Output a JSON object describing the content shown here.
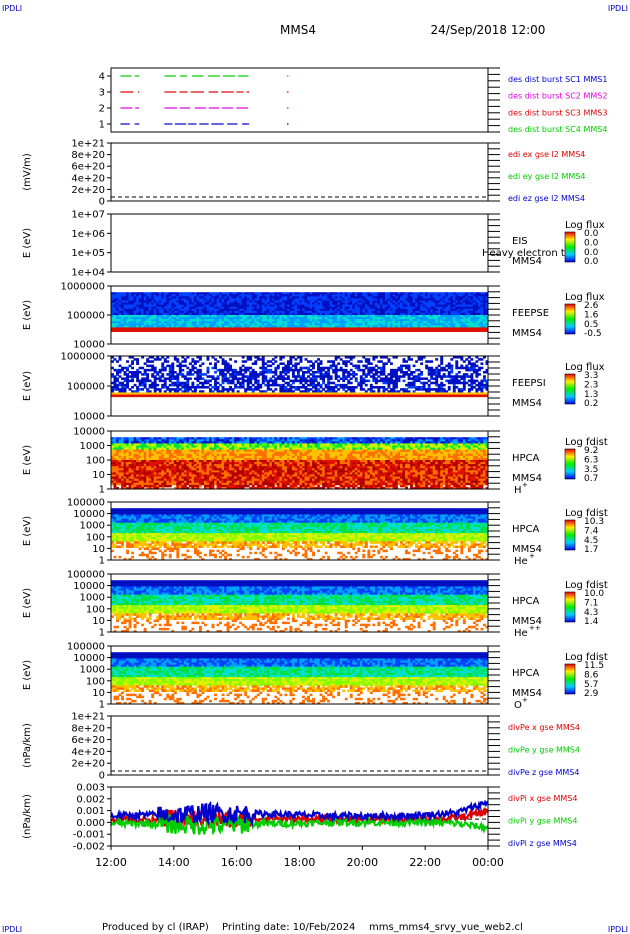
{
  "header": {
    "corner_tl": "IPDLI",
    "corner_tr": "IPDLI",
    "corner_bl": "IPDLI",
    "corner_br": "IPDLI",
    "spacecraft": "MMS4",
    "datetime": "24/Sep/2018 12:00"
  },
  "footer": {
    "produced_by": "Produced by cl (IRAP)",
    "printing_date": "Printing date: 10/Feb/2024",
    "filename": "mms_mms4_srvy_vue_web2.cl"
  },
  "colors": {
    "red": "#dd0000",
    "green": "#00cc00",
    "blue": "#0000cc",
    "magenta": "#dd00dd",
    "axis": "#000000"
  },
  "x_axis": {
    "ticks": [
      "12:00",
      "14:00",
      "16:00",
      "18:00",
      "20:00",
      "22:00",
      "00:00"
    ]
  },
  "chart_data": [
    {
      "type": "line",
      "id": "burst",
      "ylabel": "",
      "ylim": [
        0.5,
        4.5
      ],
      "yticks": [
        "4",
        "3",
        "2",
        "1"
      ],
      "legend": [
        {
          "label": "des dist burst SC1 MMS1",
          "color": "#0000cc"
        },
        {
          "label": "des dist burst SC2 MMS2",
          "color": "#dd00dd"
        },
        {
          "label": "des dist burst SC3 MMS3",
          "color": "#dd0000"
        },
        {
          "label": "des dist burst SC4 MMS4",
          "color": "#00cc00"
        }
      ],
      "series": [
        {
          "level": 4,
          "color": "#00cc00",
          "intervals": [
            [
              12.3,
              12.9
            ],
            [
              13.7,
              16.4
            ],
            [
              17.6,
              17.65
            ]
          ]
        },
        {
          "level": 3,
          "color": "#dd0000",
          "intervals": [
            [
              12.3,
              12.9
            ],
            [
              13.7,
              16.4
            ],
            [
              17.6,
              17.65
            ]
          ]
        },
        {
          "level": 2,
          "color": "#dd00dd",
          "intervals": [
            [
              12.3,
              12.9
            ],
            [
              13.7,
              16.4
            ],
            [
              17.6,
              17.65
            ]
          ]
        },
        {
          "level": 1,
          "color": "#0000cc",
          "intervals": [
            [
              12.3,
              12.9
            ],
            [
              13.7,
              16.4
            ],
            [
              17.6,
              17.65
            ]
          ]
        }
      ]
    },
    {
      "type": "line",
      "id": "edi",
      "ylabel": "(mV/m)",
      "yticks": [
        "1e+21",
        "8e+20",
        "6e+20",
        "4e+20",
        "2e+20",
        "0"
      ],
      "legend": [
        {
          "label": "edi ex gse l2 MMS4",
          "color": "#dd0000"
        },
        {
          "label": "edi ey gse l2 MMS4",
          "color": "#00cc00"
        },
        {
          "label": "edi ez gse l2 MMS4",
          "color": "#0000cc"
        }
      ]
    },
    {
      "type": "heatmap",
      "id": "eis",
      "ylabel": "E (eV)",
      "yticks": [
        "1e+07",
        "1e+06",
        "1e+05",
        "1e+04"
      ],
      "instrument": "EIS",
      "extra": "Heavy electron to",
      "sc": "MMS4",
      "colorbar_title": "Log flux",
      "colorbar_values": [
        "0.0",
        "0.0",
        "0.0",
        "0.0"
      ]
    },
    {
      "type": "heatmap",
      "id": "feepse",
      "ylabel": "E (eV)",
      "yticks": [
        "1000000",
        "100000",
        "10000"
      ],
      "instrument": "FEEPSE",
      "sc": "MMS4",
      "colorbar_title": "Log flux",
      "colorbar_values": [
        "2.6",
        "1.6",
        "0.5",
        "-0.5"
      ]
    },
    {
      "type": "heatmap",
      "id": "feepsi",
      "ylabel": "E (eV)",
      "yticks": [
        "1000000",
        "100000",
        "10000"
      ],
      "instrument": "FEEPSI",
      "sc": "MMS4",
      "colorbar_title": "Log flux",
      "colorbar_values": [
        "3.3",
        "2.3",
        "1.3",
        "0.2"
      ]
    },
    {
      "type": "heatmap",
      "id": "hpca_h",
      "ylabel": "E (eV)",
      "yticks": [
        "10000",
        "1000",
        "100",
        "10",
        "1"
      ],
      "instrument": "HPCA",
      "sc": "MMS4",
      "species": "H",
      "species_sup": "+",
      "colorbar_title": "Log fdist",
      "colorbar_values": [
        "9.2",
        "6.3",
        "3.5",
        "0.7"
      ]
    },
    {
      "type": "heatmap",
      "id": "hpca_he1",
      "ylabel": "E (eV)",
      "yticks": [
        "100000",
        "10000",
        "1000",
        "100",
        "10",
        "1"
      ],
      "instrument": "HPCA",
      "sc": "MMS4",
      "species": "He",
      "species_sup": "+",
      "colorbar_title": "Log fdist",
      "colorbar_values": [
        "10.3",
        "7.4",
        "4.5",
        "1.7"
      ]
    },
    {
      "type": "heatmap",
      "id": "hpca_he2",
      "ylabel": "E (eV)",
      "yticks": [
        "100000",
        "10000",
        "1000",
        "100",
        "10",
        "1"
      ],
      "instrument": "HPCA",
      "sc": "MMS4",
      "species": "He",
      "species_sup": "++",
      "colorbar_title": "Log fdist",
      "colorbar_values": [
        "10.0",
        "7.1",
        "4.3",
        "1.4"
      ]
    },
    {
      "type": "heatmap",
      "id": "hpca_o",
      "ylabel": "E (eV)",
      "yticks": [
        "100000",
        "10000",
        "1000",
        "100",
        "10",
        "1"
      ],
      "instrument": "HPCA",
      "sc": "MMS4",
      "species": "O",
      "species_sup": "+",
      "colorbar_title": "Log fdist",
      "colorbar_values": [
        "11.5",
        "8.6",
        "5.7",
        "2.9"
      ]
    },
    {
      "type": "line",
      "id": "divpe",
      "ylabel": "(nPa/km)",
      "yticks": [
        "1e+21",
        "8e+20",
        "6e+20",
        "4e+20",
        "2e+20",
        "0"
      ],
      "legend": [
        {
          "label": "divPe x gse MMS4",
          "color": "#dd0000"
        },
        {
          "label": "divPe y gse MMS4",
          "color": "#00cc00"
        },
        {
          "label": "divPe z gse MMS4",
          "color": "#0000cc"
        }
      ]
    },
    {
      "type": "line",
      "id": "divpi",
      "ylabel": "(nPa/km)",
      "yticks": [
        "0.003",
        "0.002",
        "0.001",
        "0.000",
        "-0.001",
        "-0.002"
      ],
      "ylim": [
        -0.0025,
        0.003
      ],
      "legend": [
        {
          "label": "divPi x gse MMS4",
          "color": "#dd0000"
        },
        {
          "label": "divPi y gse MMS4",
          "color": "#00cc00"
        },
        {
          "label": "divPi z gse MMS4",
          "color": "#0000cc"
        }
      ],
      "series": [
        {
          "name": "divPi x gse MMS4",
          "color": "#dd0000",
          "x": [
            12,
            13,
            14,
            15,
            16,
            17,
            18,
            19,
            20,
            21,
            22,
            23,
            24
          ],
          "y": [
            0.0,
            -0.0001,
            0.0,
            0.0001,
            -0.0001,
            0.0001,
            0.0,
            0.0,
            0.0,
            0.0,
            0.0,
            0.0001,
            0.0007
          ]
        },
        {
          "name": "divPi y gse MMS4",
          "color": "#00cc00",
          "x": [
            12,
            13,
            14,
            15,
            16,
            17,
            18,
            19,
            20,
            21,
            22,
            23,
            24
          ],
          "y": [
            -0.0004,
            -0.0004,
            -0.0005,
            -0.0006,
            -0.0005,
            -0.0004,
            -0.0004,
            -0.0003,
            -0.0003,
            -0.0003,
            -0.0003,
            -0.0004,
            -0.0008
          ]
        },
        {
          "name": "divPi z gse MMS4",
          "color": "#0000cc",
          "x": [
            12,
            13,
            14,
            15,
            16,
            17,
            18,
            19,
            20,
            21,
            22,
            23,
            24
          ],
          "y": [
            0.0003,
            0.0004,
            0.0004,
            0.0006,
            0.0005,
            0.0005,
            0.0004,
            0.0003,
            0.0003,
            0.0003,
            0.0004,
            0.0006,
            0.0016
          ]
        }
      ]
    }
  ]
}
